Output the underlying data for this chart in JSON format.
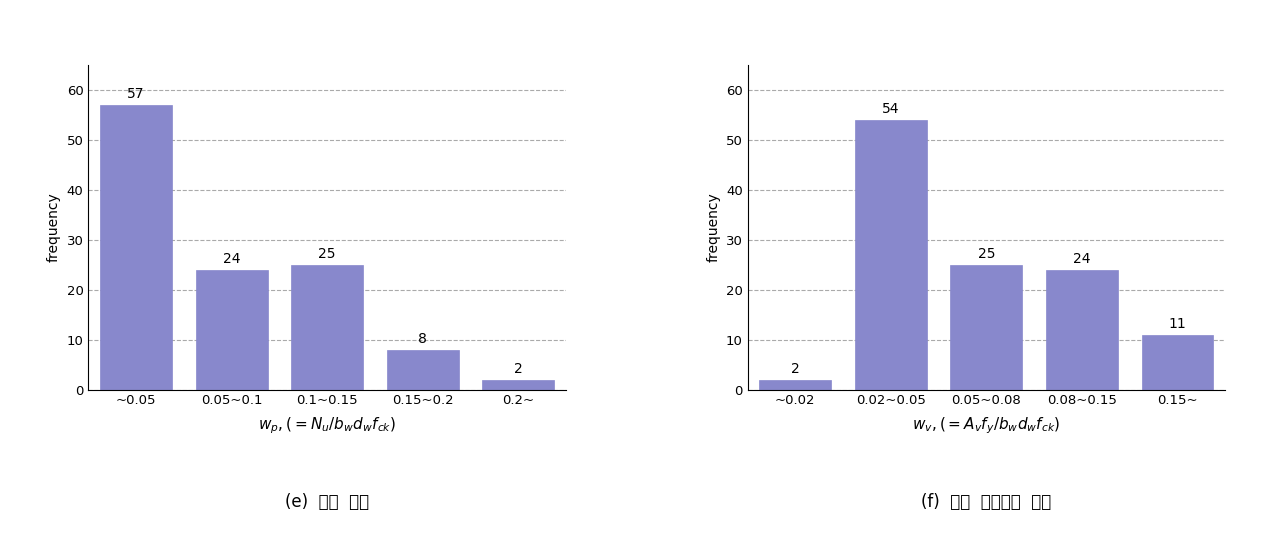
{
  "left": {
    "values": [
      57,
      24,
      25,
      8,
      2
    ],
    "categories": [
      "~0.05",
      "0.05~0.1",
      "0.1~0.15",
      "0.15~0.2",
      "0.2~"
    ],
    "ylabel": "frequency",
    "xlabel_math": "$w_p,(=N_u/b_w d_w f_{ck})$",
    "caption": "(e)  축력  지수",
    "ylim": [
      0,
      65
    ],
    "yticks": [
      0,
      10,
      20,
      30,
      40,
      50,
      60
    ],
    "bar_color": "#8888cc",
    "bar_edgecolor": "#8888cc",
    "bar_linewidth": 0.5
  },
  "right": {
    "values": [
      2,
      54,
      25,
      24,
      11
    ],
    "categories": [
      "~0.02",
      "0.02~0.05",
      "0.05~0.08",
      "0.08~0.15",
      "0.15~"
    ],
    "ylabel": "frequency",
    "xlabel_math": "$w_v,(=A_v f_y/b_w d_w f_{ck})$",
    "caption": "(f)  웹브  수직철근  지수",
    "ylim": [
      0,
      65
    ],
    "yticks": [
      0,
      10,
      20,
      30,
      40,
      50,
      60
    ],
    "bar_color": "#8888cc",
    "bar_edgecolor": "#8888cc",
    "bar_linewidth": 0.5
  },
  "bg_color": "#ffffff",
  "label_fontsize": 10,
  "tick_fontsize": 9.5,
  "value_fontsize": 10,
  "caption_fontsize": 12,
  "math_fontsize": 11
}
